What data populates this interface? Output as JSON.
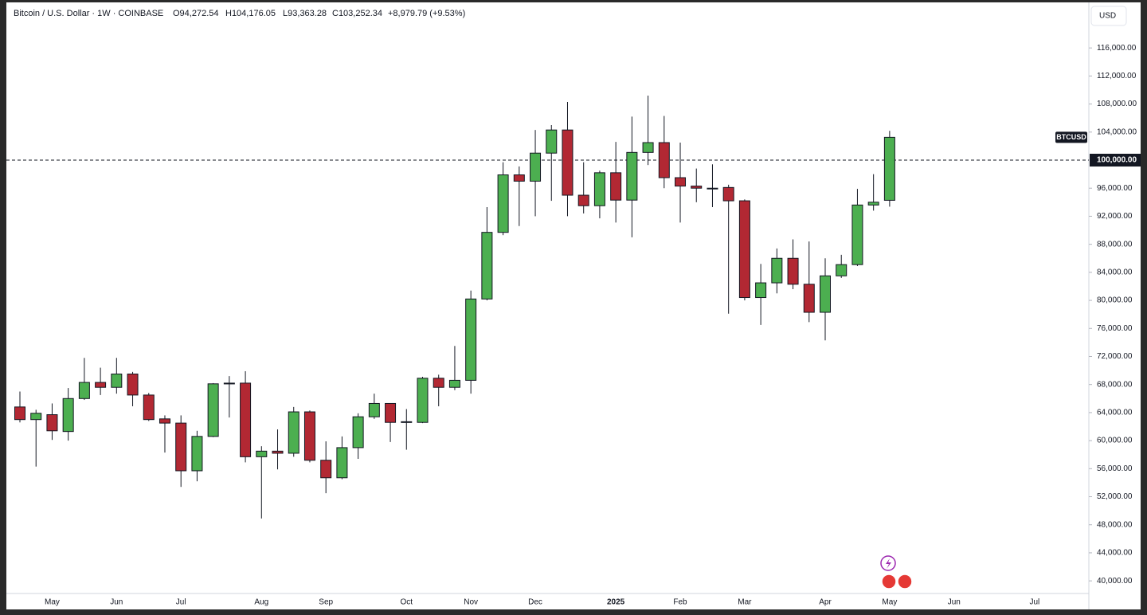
{
  "chart_data": {
    "type": "candlestick",
    "title": "Bitcoin / U.S. Dollar · 1W · COINBASE",
    "ohlc_legend": {
      "open": "O94,272.54",
      "high": "H104,176.05",
      "low": "L93,363.28",
      "close": "C103,252.34",
      "change": "+8,979.79 (+9.53%)"
    },
    "currency": "USD",
    "last_price_tag": "BTCUSD",
    "up_color": "#4caf50",
    "down_color": "#b22833",
    "categories": [
      null,
      null,
      "May",
      null,
      null,
      null,
      "Jun",
      null,
      null,
      null,
      "Jul",
      null,
      null,
      null,
      null,
      "Aug",
      null,
      null,
      null,
      "Sep",
      null,
      null,
      null,
      null,
      "Oct",
      null,
      null,
      null,
      "Nov",
      null,
      null,
      null,
      "Dec",
      null,
      null,
      null,
      null,
      "2025",
      null,
      null,
      null,
      "Feb",
      null,
      null,
      null,
      "Mar",
      null,
      null,
      null,
      null,
      "Apr",
      null,
      null,
      null,
      "May",
      null,
      null,
      null,
      "Jun",
      null,
      null,
      null,
      null,
      "Jul"
    ],
    "open": [
      64800,
      63000,
      63700,
      61300,
      66000,
      68300,
      67600,
      69500,
      66500,
      63100,
      62500,
      55700,
      60600,
      68100,
      68200,
      57700,
      58500,
      58200,
      64100,
      57200,
      54700,
      59000,
      63400,
      65300,
      62600,
      62600,
      68900,
      67600,
      68600,
      80200,
      89700,
      97900,
      97000,
      101000,
      104300,
      95000,
      93500,
      98200,
      94300,
      101100,
      102500,
      97500,
      96300,
      96000,
      96100,
      94200,
      80400,
      82500,
      86000,
      82300,
      78300,
      83500,
      85100,
      93600,
      94272.54,
      null,
      null,
      null,
      null,
      null,
      null,
      null,
      null,
      null
    ],
    "high": [
      67000,
      64400,
      65300,
      67500,
      71800,
      70400,
      71800,
      69800,
      66800,
      63600,
      63600,
      61400,
      68200,
      69200,
      69900,
      59200,
      61600,
      64800,
      64300,
      59900,
      60600,
      63900,
      66700,
      65300,
      64500,
      69100,
      69400,
      73500,
      81400,
      93300,
      99700,
      99100,
      104300,
      105000,
      108300,
      99700,
      98500,
      102600,
      106200,
      109200,
      106300,
      102500,
      98800,
      99400,
      96500,
      94400,
      85200,
      87400,
      88700,
      88400,
      86000,
      86500,
      95900,
      98000,
      104176.05,
      null,
      null,
      null,
      null,
      null,
      null,
      null,
      null,
      null
    ],
    "low": [
      62600,
      56300,
      60100,
      60000,
      65800,
      66500,
      66700,
      64900,
      62800,
      58300,
      53400,
      54200,
      60500,
      63300,
      56900,
      48900,
      55900,
      57700,
      56900,
      52500,
      54500,
      57400,
      63100,
      59800,
      58700,
      62500,
      64900,
      67200,
      66700,
      80000,
      89300,
      90600,
      92000,
      94200,
      92000,
      92400,
      91700,
      91100,
      89000,
      99300,
      96000,
      91100,
      94000,
      93300,
      78100,
      80000,
      76500,
      81000,
      81600,
      76900,
      74300,
      83200,
      84900,
      92800,
      93363.28,
      null,
      null,
      null,
      null,
      null,
      null,
      null,
      null,
      null
    ],
    "close": [
      63000,
      63900,
      61400,
      66000,
      68300,
      67600,
      69500,
      66500,
      63000,
      62500,
      55700,
      60600,
      68100,
      68200,
      57700,
      58500,
      58200,
      64100,
      57200,
      54700,
      59000,
      63400,
      65300,
      62600,
      62700,
      68900,
      67600,
      68600,
      80200,
      89700,
      97900,
      97000,
      101000,
      104300,
      95000,
      93500,
      98200,
      94300,
      101100,
      102500,
      97500,
      96300,
      96000,
      95900,
      94200,
      80400,
      82500,
      86000,
      82300,
      78300,
      83500,
      85100,
      93600,
      94000,
      103252.34,
      null,
      null,
      null,
      null,
      null,
      null,
      null,
      null,
      null
    ],
    "ylim": [
      38200,
      121700
    ],
    "yticks": [
      {
        "value": 40000,
        "label": "40,000.00"
      },
      {
        "value": 44000,
        "label": "44,000.00"
      },
      {
        "value": 48000,
        "label": "48,000.00"
      },
      {
        "value": 52000,
        "label": "52,000.00"
      },
      {
        "value": 56000,
        "label": "56,000.00"
      },
      {
        "value": 60000,
        "label": "60,000.00"
      },
      {
        "value": 64000,
        "label": "64,000.00"
      },
      {
        "value": 68000,
        "label": "68,000.00"
      },
      {
        "value": 72000,
        "label": "72,000.00"
      },
      {
        "value": 76000,
        "label": "76,000.00"
      },
      {
        "value": 80000,
        "label": "80,000.00"
      },
      {
        "value": 84000,
        "label": "84,000.00"
      },
      {
        "value": 88000,
        "label": "88,000.00"
      },
      {
        "value": 92000,
        "label": "92,000.00"
      },
      {
        "value": 96000,
        "label": "96,000.00"
      },
      {
        "value": 104000,
        "label": "104,000.00"
      },
      {
        "value": 108000,
        "label": "108,000.00"
      },
      {
        "value": 112000,
        "label": "112,000.00"
      },
      {
        "value": 116000,
        "label": "116,000.00"
      }
    ],
    "reference_line": {
      "value": 100000,
      "label": "100,000.00"
    }
  }
}
